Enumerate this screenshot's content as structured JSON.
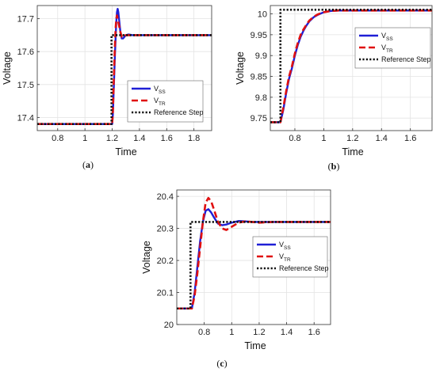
{
  "chart_data": [
    {
      "type": "line",
      "caption_letter": "a",
      "xlabel": "Time",
      "ylabel": "Voltage",
      "xlim": [
        0.65,
        1.93
      ],
      "ylim": [
        17.36,
        17.74
      ],
      "xticks": [
        0.8,
        1,
        1.2,
        1.4,
        1.6,
        1.8
      ],
      "xtick_labels": [
        "0.8",
        "1",
        "1.2",
        "1.4",
        "1.6",
        "1.8"
      ],
      "yticks": [
        17.4,
        17.5,
        17.6,
        17.7
      ],
      "ytick_labels": [
        "17.4",
        "17.5",
        "17.6",
        "17.7"
      ],
      "grid": true,
      "legend_position": "lower-right",
      "series": [
        {
          "label_main": "V",
          "label_sub": "SS",
          "color": "#1f1fd6",
          "style": "solid",
          "x": [
            0.65,
            1.2,
            1.205,
            1.21,
            1.215,
            1.22,
            1.225,
            1.23,
            1.235,
            1.24,
            1.245,
            1.25,
            1.26,
            1.27,
            1.28,
            1.29,
            1.3,
            1.32,
            1.35,
            1.4,
            1.45,
            1.5,
            1.93
          ],
          "y": [
            17.38,
            17.38,
            17.41,
            17.47,
            17.53,
            17.59,
            17.64,
            17.69,
            17.72,
            17.73,
            17.72,
            17.7,
            17.66,
            17.64,
            17.64,
            17.645,
            17.65,
            17.652,
            17.65,
            17.65,
            17.65,
            17.65,
            17.65
          ]
        },
        {
          "label_main": "V",
          "label_sub": "TR",
          "color": "#e01010",
          "style": "dashed",
          "x": [
            0.65,
            1.2,
            1.205,
            1.21,
            1.215,
            1.22,
            1.225,
            1.23,
            1.235,
            1.24,
            1.25,
            1.26,
            1.27,
            1.28,
            1.3,
            1.35,
            1.4,
            1.93
          ],
          "y": [
            17.38,
            17.38,
            17.42,
            17.49,
            17.56,
            17.62,
            17.67,
            17.7,
            17.71,
            17.7,
            17.68,
            17.66,
            17.645,
            17.645,
            17.65,
            17.65,
            17.65,
            17.65
          ]
        },
        {
          "label_main": "Reference Step",
          "label_sub": "",
          "color": "#111111",
          "style": "dotted",
          "x": [
            0.65,
            1.195,
            1.195,
            1.93
          ],
          "y": [
            17.38,
            17.38,
            17.65,
            17.65
          ]
        }
      ]
    },
    {
      "type": "line",
      "caption_letter": "b",
      "xlabel": "Time",
      "ylabel": "Voltage",
      "xlim": [
        0.63,
        1.75
      ],
      "ylim": [
        9.72,
        10.02
      ],
      "xticks": [
        0.8,
        1,
        1.2,
        1.4,
        1.6
      ],
      "xtick_labels": [
        "0.8",
        "1",
        "1.2",
        "1.4",
        "1.6"
      ],
      "yticks": [
        9.75,
        9.8,
        9.85,
        9.9,
        9.95,
        10
      ],
      "ytick_labels": [
        "9.75",
        "9.8",
        "9.85",
        "9.9",
        "9.95",
        "10"
      ],
      "grid": true,
      "legend_position": "top-right",
      "series": [
        {
          "label_main": "V",
          "label_sub": "SS",
          "color": "#1f1fd6",
          "style": "solid",
          "x": [
            0.63,
            0.7,
            0.72,
            0.74,
            0.76,
            0.78,
            0.8,
            0.82,
            0.84,
            0.86,
            0.88,
            0.9,
            0.93,
            0.96,
            1.0,
            1.05,
            1.1,
            1.2,
            1.3,
            1.75
          ],
          "y": [
            9.74,
            9.74,
            9.77,
            9.81,
            9.845,
            9.87,
            9.9,
            9.925,
            9.945,
            9.96,
            9.972,
            9.982,
            9.992,
            9.998,
            10.004,
            10.007,
            10.008,
            10.008,
            10.008,
            10.008
          ]
        },
        {
          "label_main": "V",
          "label_sub": "TR",
          "color": "#e01010",
          "style": "dashed",
          "x": [
            0.63,
            0.7,
            0.72,
            0.74,
            0.76,
            0.78,
            0.8,
            0.82,
            0.84,
            0.86,
            0.88,
            0.9,
            0.93,
            0.96,
            1.0,
            1.05,
            1.1,
            1.2,
            1.75
          ],
          "y": [
            9.74,
            9.74,
            9.775,
            9.815,
            9.85,
            9.875,
            9.905,
            9.93,
            9.95,
            9.963,
            9.974,
            9.984,
            9.993,
            9.999,
            10.004,
            10.007,
            10.008,
            10.008,
            10.008
          ]
        },
        {
          "label_main": "Reference Step",
          "label_sub": "",
          "color": "#111111",
          "style": "dotted",
          "x": [
            0.63,
            0.7,
            0.7,
            1.75
          ],
          "y": [
            9.74,
            9.74,
            10.01,
            10.01
          ]
        }
      ]
    },
    {
      "type": "line",
      "caption_letter": "c",
      "xlabel": "Time",
      "ylabel": "Voltage",
      "xlim": [
        0.6,
        1.72
      ],
      "ylim": [
        20.0,
        20.42
      ],
      "xticks": [
        0.8,
        1,
        1.2,
        1.4,
        1.6
      ],
      "xtick_labels": [
        "0.8",
        "1",
        "1.2",
        "1.4",
        "1.6"
      ],
      "yticks": [
        20,
        20.1,
        20.2,
        20.3,
        20.4
      ],
      "ytick_labels": [
        "20",
        "20.1",
        "20.2",
        "20.3",
        "20.4"
      ],
      "grid": true,
      "legend_position": "top-right",
      "series": [
        {
          "label_main": "V",
          "label_sub": "SS",
          "color": "#1f1fd6",
          "style": "solid",
          "x": [
            0.6,
            0.71,
            0.73,
            0.75,
            0.77,
            0.79,
            0.81,
            0.83,
            0.85,
            0.87,
            0.9,
            0.93,
            0.96,
            1.0,
            1.05,
            1.1,
            1.15,
            1.2,
            1.3,
            1.72
          ],
          "y": [
            20.05,
            20.05,
            20.1,
            20.18,
            20.26,
            20.32,
            20.355,
            20.36,
            20.35,
            20.335,
            20.315,
            20.31,
            20.312,
            20.318,
            20.323,
            20.322,
            20.32,
            20.32,
            20.32,
            20.32
          ]
        },
        {
          "label_main": "V",
          "label_sub": "TR",
          "color": "#e01010",
          "style": "dashed",
          "x": [
            0.6,
            0.71,
            0.73,
            0.75,
            0.77,
            0.79,
            0.81,
            0.83,
            0.85,
            0.87,
            0.9,
            0.93,
            0.96,
            1.0,
            1.05,
            1.1,
            1.15,
            1.2,
            1.3,
            1.72
          ],
          "y": [
            20.05,
            20.05,
            20.09,
            20.16,
            20.24,
            20.32,
            20.38,
            20.395,
            20.385,
            20.36,
            20.32,
            20.3,
            20.295,
            20.305,
            20.318,
            20.322,
            20.32,
            20.318,
            20.32,
            20.32
          ]
        },
        {
          "label_main": "Reference Step",
          "label_sub": "",
          "color": "#111111",
          "style": "dotted",
          "x": [
            0.6,
            0.7,
            0.7,
            1.72
          ],
          "y": [
            20.05,
            20.05,
            20.32,
            20.32
          ]
        }
      ]
    }
  ]
}
